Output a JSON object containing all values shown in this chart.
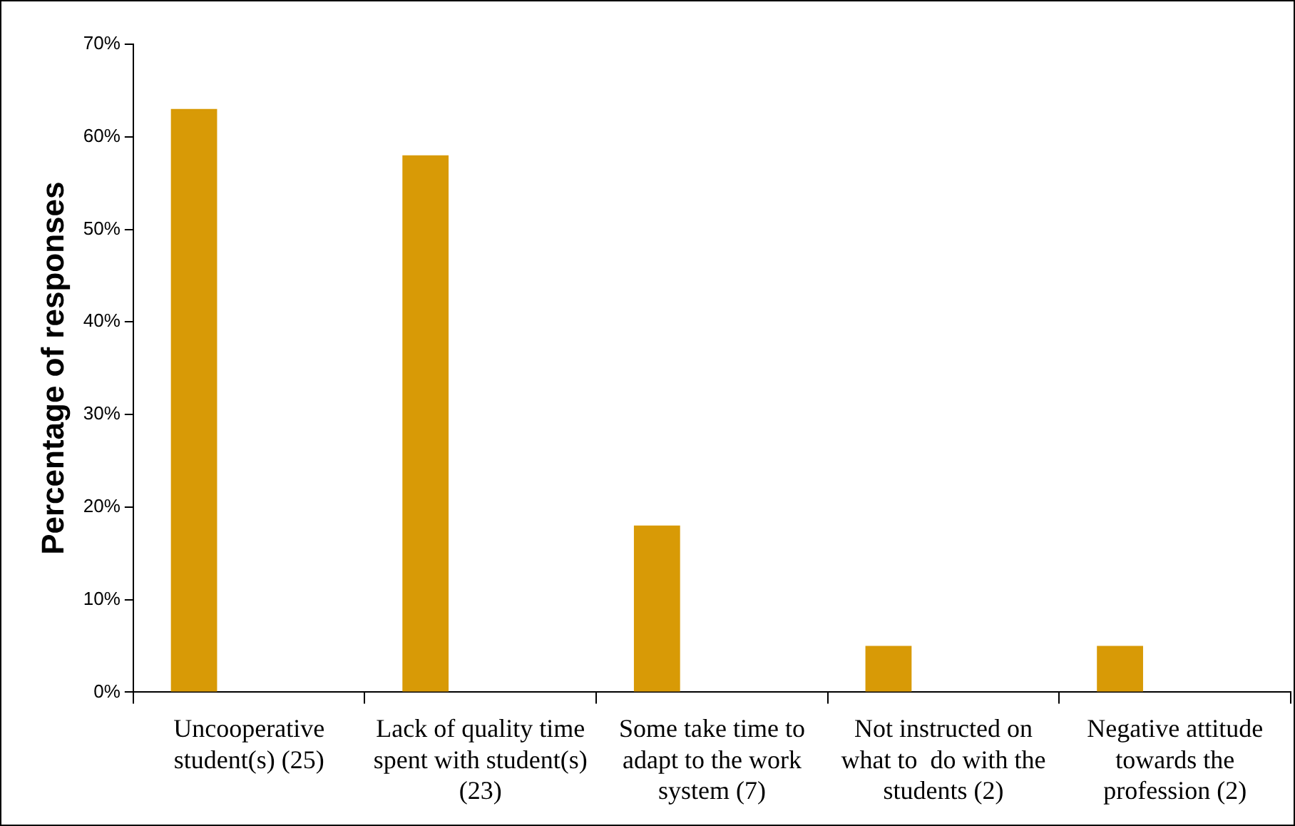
{
  "chart_data": {
    "type": "bar",
    "ylabel": "Percentage of responses",
    "categories": [
      "Uncooperative student(s) (25)",
      "Lack of quality time spent with student(s) (23)",
      "Some take time to adapt to the work system (7)",
      "Not instructed on what to  do with the students (2)",
      "Negative attitude towards the profession (2)"
    ],
    "values": [
      63,
      58,
      18,
      5,
      5
    ],
    "color": "#d89a06",
    "ylim": [
      0,
      70
    ],
    "yticks": [
      {
        "value": 0,
        "label": "0%"
      },
      {
        "value": 10,
        "label": "10%"
      },
      {
        "value": 20,
        "label": "20%"
      },
      {
        "value": 30,
        "label": "30%"
      },
      {
        "value": 40,
        "label": "40%"
      },
      {
        "value": 50,
        "label": "50%"
      },
      {
        "value": 60,
        "label": "60%"
      },
      {
        "value": 70,
        "label": "70%"
      }
    ],
    "grid": false,
    "legend": false
  }
}
